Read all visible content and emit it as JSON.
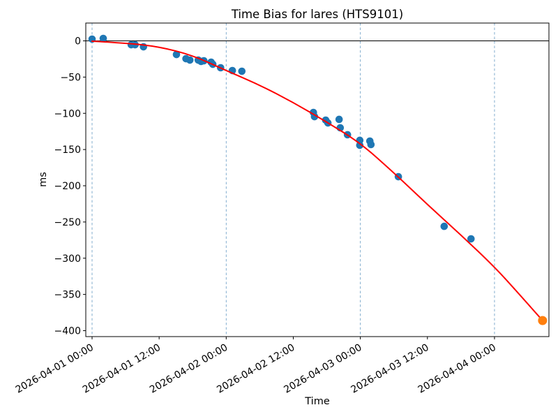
{
  "chart_data": {
    "type": "scatter",
    "title": "Time Bias for lares (HTS9101)",
    "xlabel": "Time",
    "ylabel": "ms",
    "x_unit": "hours after 2026-04-01 00:00",
    "xlim_hours": [
      -1.123,
      81.74
    ],
    "ylim": [
      -408.2,
      24.6
    ],
    "grid": "vertical dashed lines at each 00:00 day boundary, horizontal solid black line at 0 ms",
    "legend_position": "none",
    "x_ticks": [
      {
        "hours": 0,
        "label": "2026-04-01 00:00"
      },
      {
        "hours": 12,
        "label": "2026-04-01 12:00"
      },
      {
        "hours": 24,
        "label": "2026-04-02 00:00"
      },
      {
        "hours": 36,
        "label": "2026-04-02 12:00"
      },
      {
        "hours": 48,
        "label": "2026-04-03 00:00"
      },
      {
        "hours": 60,
        "label": "2026-04-03 12:00"
      },
      {
        "hours": 72,
        "label": "2026-04-04 00:00"
      }
    ],
    "y_ticks": [
      {
        "v": 0,
        "label": "0"
      },
      {
        "v": -50,
        "label": "−50"
      },
      {
        "v": -100,
        "label": "−100"
      },
      {
        "v": -150,
        "label": "−150"
      },
      {
        "v": -200,
        "label": "−200"
      },
      {
        "v": -250,
        "label": "−250"
      },
      {
        "v": -300,
        "label": "−300"
      },
      {
        "v": -350,
        "label": "−350"
      },
      {
        "v": -400,
        "label": "−400"
      }
    ],
    "day_gridlines_hours": [
      0,
      24,
      48,
      72
    ],
    "zero_line": true,
    "colors": {
      "scatter": "#1f77b4",
      "last_point": "#ff7f0e",
      "fit_line": "#ff0000",
      "grid_line": "#74a4c9",
      "zero_line": "#000000",
      "spine": "#000000",
      "text": "#000000"
    },
    "series": [
      {
        "name": "measured-bias",
        "type": "scatter",
        "color": "#1f77b4",
        "marker_radius": 5.3,
        "points": [
          {
            "time": "2026-04-01 00:00",
            "hours": 0.0,
            "ms": 2.4
          },
          {
            "time": "2026-04-01 02:00",
            "hours": 2.0,
            "ms": 3.4
          },
          {
            "time": "2026-04-01 07:00",
            "hours": 7.0,
            "ms": -5.3
          },
          {
            "time": "2026-04-01 07:42",
            "hours": 7.7,
            "ms": -5.3
          },
          {
            "time": "2026-04-01 09:12",
            "hours": 9.2,
            "ms": -8.2
          },
          {
            "time": "2026-04-01 15:06",
            "hours": 15.1,
            "ms": -18.8
          },
          {
            "time": "2026-04-01 16:48",
            "hours": 16.8,
            "ms": -24.6
          },
          {
            "time": "2026-04-01 17:30",
            "hours": 17.5,
            "ms": -26.5
          },
          {
            "time": "2026-04-01 19:00",
            "hours": 19.0,
            "ms": -26.5
          },
          {
            "time": "2026-04-01 19:30",
            "hours": 19.5,
            "ms": -28.4
          },
          {
            "time": "2026-04-01 20:00",
            "hours": 20.0,
            "ms": -27.5
          },
          {
            "time": "2026-04-01 21:18",
            "hours": 21.3,
            "ms": -29.4
          },
          {
            "time": "2026-04-01 21:36",
            "hours": 21.6,
            "ms": -32.3
          },
          {
            "time": "2026-04-01 23:00",
            "hours": 23.0,
            "ms": -37.1
          },
          {
            "time": "2026-04-02 01:06",
            "hours": 25.1,
            "ms": -41.0
          },
          {
            "time": "2026-04-02 02:48",
            "hours": 26.8,
            "ms": -41.9
          },
          {
            "time": "2026-04-02 15:36",
            "hours": 39.6,
            "ms": -98.8
          },
          {
            "time": "2026-04-02 15:48",
            "hours": 39.8,
            "ms": -104.6
          },
          {
            "time": "2026-04-02 17:48",
            "hours": 41.8,
            "ms": -109.4
          },
          {
            "time": "2026-04-02 18:12",
            "hours": 42.2,
            "ms": -113.3
          },
          {
            "time": "2026-04-02 20:12",
            "hours": 44.2,
            "ms": -108.4
          },
          {
            "time": "2026-04-02 20:24",
            "hours": 44.4,
            "ms": -120.0
          },
          {
            "time": "2026-04-02 21:42",
            "hours": 45.7,
            "ms": -129.6
          },
          {
            "time": "2026-04-02 23:54",
            "hours": 47.9,
            "ms": -137.3
          },
          {
            "time": "2026-04-02 23:54",
            "hours": 47.9,
            "ms": -144.1
          },
          {
            "time": "2026-04-03 01:42",
            "hours": 49.7,
            "ms": -138.3
          },
          {
            "time": "2026-04-03 01:54",
            "hours": 49.9,
            "ms": -143.1
          },
          {
            "time": "2026-04-03 06:48",
            "hours": 54.8,
            "ms": -187.5
          },
          {
            "time": "2026-04-03 15:00",
            "hours": 63.0,
            "ms": -256.0
          },
          {
            "time": "2026-04-03 19:48",
            "hours": 67.8,
            "ms": -273.3
          }
        ]
      },
      {
        "name": "predicted-bias",
        "type": "scatter",
        "color": "#ff7f0e",
        "marker_radius": 6.5,
        "points": [
          {
            "time": "2026-04-04 08:36",
            "hours": 80.6,
            "ms": -386.0
          }
        ]
      },
      {
        "name": "fit-curve",
        "type": "line",
        "color": "#ff0000",
        "width": 2,
        "points": [
          [
            0,
            -0.5
          ],
          [
            6,
            -3
          ],
          [
            12,
            -8
          ],
          [
            18,
            -20
          ],
          [
            24,
            -41
          ],
          [
            30,
            -61
          ],
          [
            36,
            -85
          ],
          [
            42,
            -112
          ],
          [
            48,
            -141
          ],
          [
            54,
            -182
          ],
          [
            60,
            -226
          ],
          [
            66,
            -268
          ],
          [
            72,
            -312
          ],
          [
            76,
            -346
          ],
          [
            80.6,
            -386
          ]
        ]
      }
    ]
  }
}
